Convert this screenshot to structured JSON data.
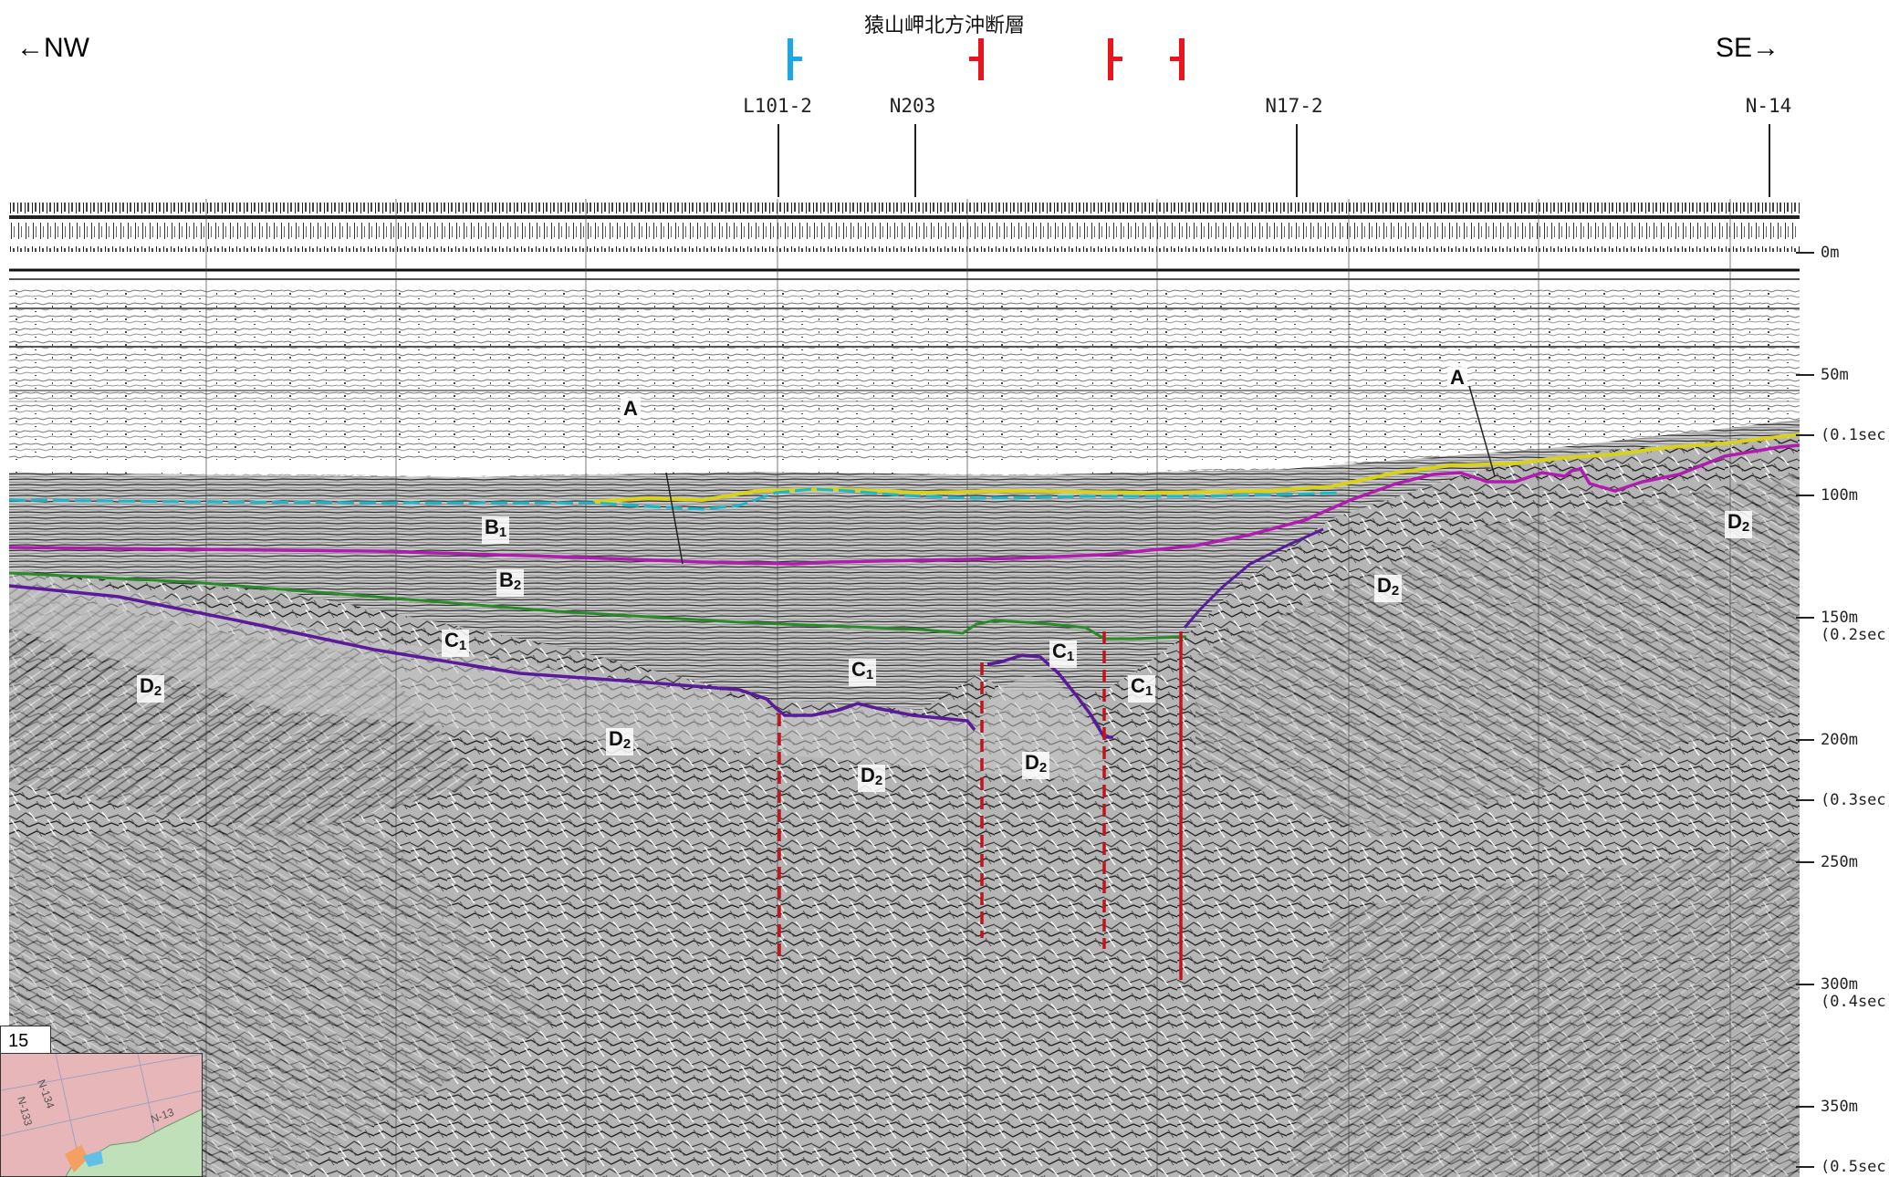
{
  "title": "猿山岬北方沖断層",
  "direction": {
    "left": "←NW",
    "right": "SE→"
  },
  "fault_markers": [
    {
      "color": "#1aa8e8",
      "tick": "right"
    },
    {
      "color": "#e8141e",
      "tick": "left"
    },
    {
      "color": "#e8141e",
      "tick": "right"
    },
    {
      "color": "#e8141e",
      "tick": "left"
    }
  ],
  "cross_lines": [
    {
      "label": "L101-2"
    },
    {
      "label": "N203"
    },
    {
      "label": "N17-2"
    },
    {
      "label": "N-14"
    }
  ],
  "depth_scale": [
    {
      "depth": "0m",
      "time": ""
    },
    {
      "depth": "50m",
      "time": ""
    },
    {
      "depth": "",
      "time": "(0.1sec)"
    },
    {
      "depth": "100m",
      "time": ""
    },
    {
      "depth": "150m",
      "time": "(0.2sec)"
    },
    {
      "depth": "200m",
      "time": ""
    },
    {
      "depth": "",
      "time": "(0.3sec)"
    },
    {
      "depth": "250m",
      "time": ""
    },
    {
      "depth": "300m",
      "time": "(0.4sec)"
    },
    {
      "depth": "350m",
      "time": ""
    },
    {
      "depth": "",
      "time": "(0.5sec)"
    }
  ],
  "unit_labels": [
    {
      "main": "A",
      "sub": ""
    },
    {
      "main": "A",
      "sub": ""
    },
    {
      "main": "B",
      "sub": "1"
    },
    {
      "main": "B",
      "sub": "2"
    },
    {
      "main": "C",
      "sub": "1"
    },
    {
      "main": "C",
      "sub": "1"
    },
    {
      "main": "C",
      "sub": "1"
    },
    {
      "main": "C",
      "sub": "1"
    },
    {
      "main": "D",
      "sub": "2"
    },
    {
      "main": "D",
      "sub": "2"
    },
    {
      "main": "D",
      "sub": "2"
    },
    {
      "main": "D",
      "sub": "2"
    },
    {
      "main": "D",
      "sub": "2"
    },
    {
      "main": "D",
      "sub": "2"
    }
  ],
  "inset": {
    "index_label": "15",
    "map_texts": [
      "N-134",
      "N-133",
      "N-13"
    ]
  },
  "colors": {
    "horizon_A_yellow": "#d8d21c",
    "horizon_A_cyan": "#1ab8c8",
    "horizon_B_magenta": "#b01cb0",
    "horizon_C_green": "#2a8a2a",
    "horizon_D_purple": "#5a1a9a",
    "fault_red": "#c0141e",
    "fault_blue": "#1aa8e8"
  }
}
